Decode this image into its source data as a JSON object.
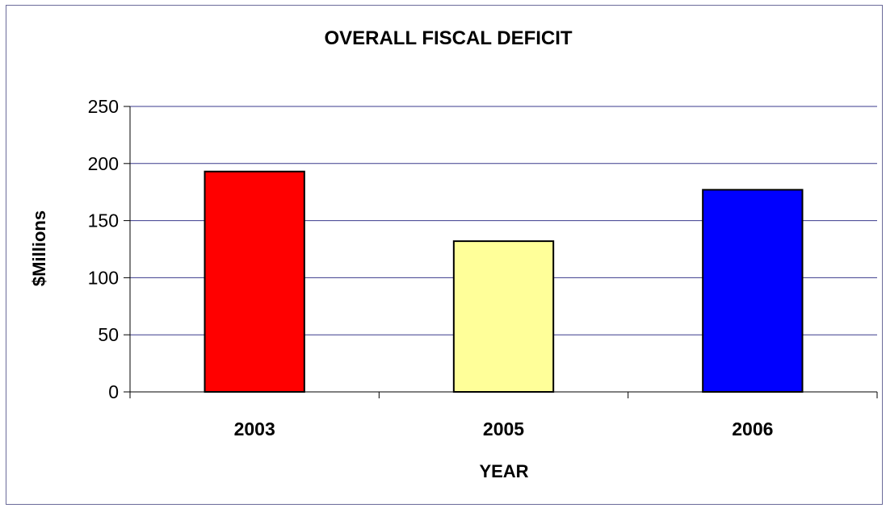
{
  "chart_data": {
    "type": "bar",
    "title": "OVERALL FISCAL DEFICIT",
    "xlabel": "YEAR",
    "ylabel": "$Millions",
    "categories": [
      "2003",
      "2005",
      "2006"
    ],
    "values": [
      193,
      132,
      177
    ],
    "bar_colors": [
      "#ff0000",
      "#ffff99",
      "#0000ff"
    ],
    "ylim": [
      0,
      250
    ],
    "yticks": [
      0,
      50,
      100,
      150,
      200,
      250
    ],
    "grid": true,
    "gridline_color": "#3a3a8c",
    "legend": "none"
  }
}
